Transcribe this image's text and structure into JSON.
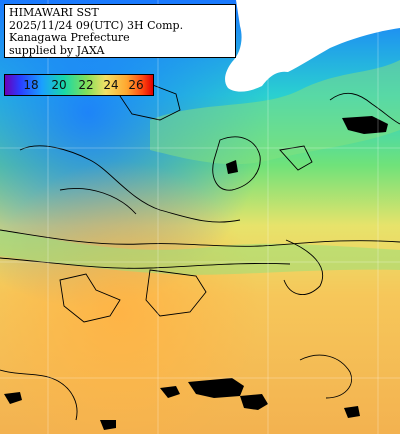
{
  "caption": {
    "line1": "HIMAWARI SST",
    "line2": "2025/11/24 09(UTC) 3H Comp.",
    "line3": "Kanagawa Prefecture",
    "line4": "supplied by JAXA"
  },
  "legend": {
    "ticks": [
      "18",
      "20",
      "22",
      "24",
      "26"
    ],
    "colors": [
      "#6a00b8",
      "#2a3cff",
      "#1aa0ff",
      "#19d8a8",
      "#80e05a",
      "#f2e066",
      "#ffa830",
      "#ff4810",
      "#e00000"
    ]
  }
}
